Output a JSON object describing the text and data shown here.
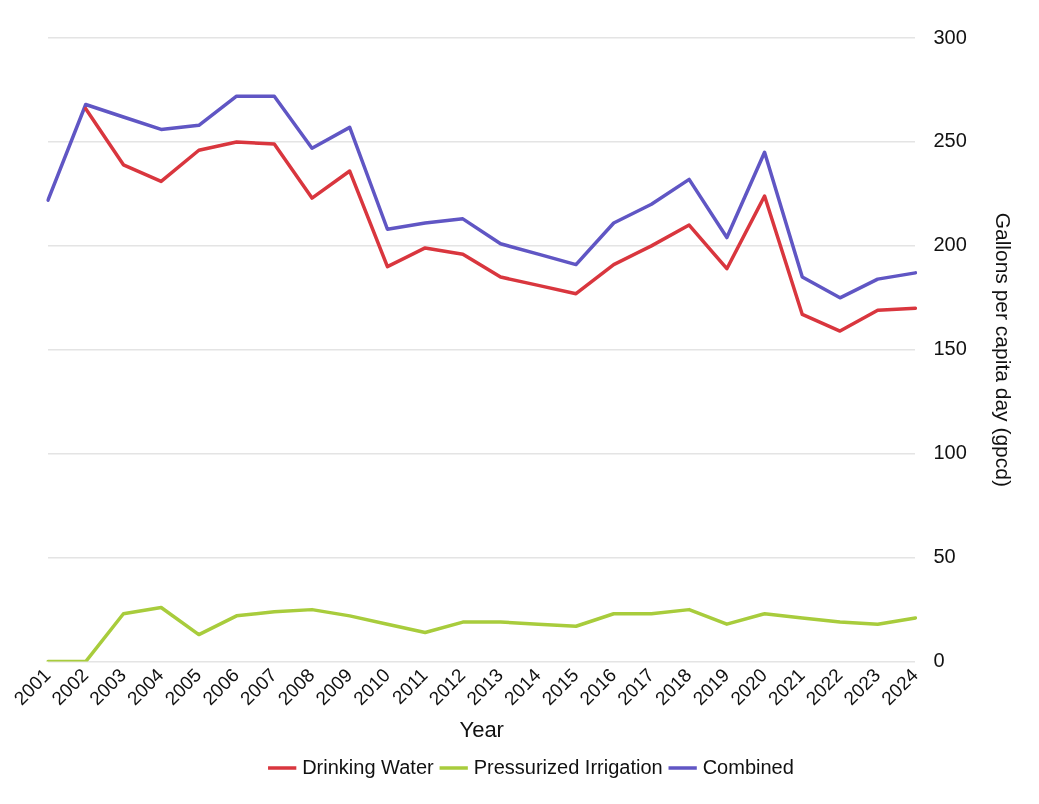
{
  "chart_data": {
    "type": "line",
    "xlabel": "Year",
    "ylabel": "Gallons per capita day (gpcd)",
    "categories": [
      "2001",
      "2002",
      "2003",
      "2004",
      "2005",
      "2006",
      "2007",
      "2008",
      "2009",
      "2010",
      "2011",
      "2012",
      "2013",
      "2014",
      "2015",
      "2016",
      "2017",
      "2018",
      "2019",
      "2020",
      "2021",
      "2022",
      "2023",
      "2024"
    ],
    "series": [
      {
        "name": "Drinking Water",
        "color": "#d9363e",
        "values": [
          null,
          266,
          239,
          231,
          246,
          250,
          249,
          223,
          236,
          190,
          199,
          196,
          185,
          181,
          177,
          191,
          200,
          210,
          189,
          224,
          167,
          159,
          169,
          170
        ]
      },
      {
        "name": "Pressurized Irrigation",
        "color": "#a8cc3c",
        "values": [
          0,
          0,
          23,
          26,
          13,
          22,
          24,
          25,
          22,
          18,
          14,
          19,
          19,
          18,
          17,
          23,
          23,
          25,
          18,
          23,
          21,
          19,
          18,
          21
        ]
      },
      {
        "name": "Combined",
        "color": "#6056c4",
        "values": [
          222,
          268,
          262,
          256,
          258,
          272,
          272,
          247,
          257,
          208,
          211,
          213,
          201,
          196,
          191,
          211,
          220,
          232,
          204,
          245,
          185,
          175,
          184,
          187
        ]
      }
    ],
    "ylim": [
      0,
      300
    ],
    "yticks": [
      0,
      50,
      100,
      150,
      200,
      250,
      300
    ],
    "grid": "y",
    "legend": "bottom",
    "marker": "none",
    "line_style": "solid"
  }
}
